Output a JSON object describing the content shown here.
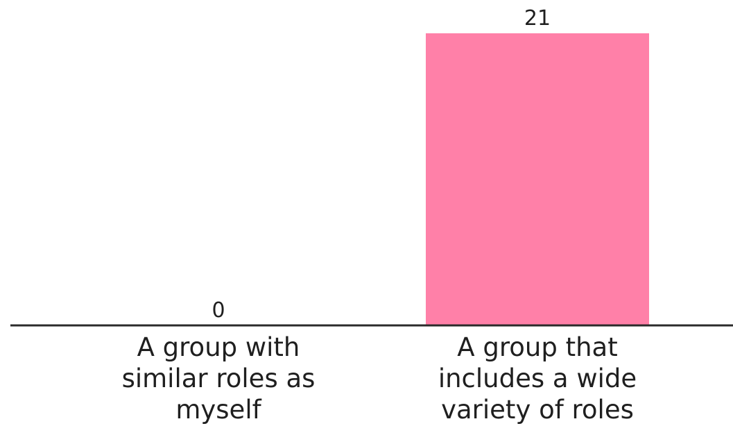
{
  "chart_data": {
    "type": "bar",
    "categories": [
      [
        "A group with",
        "similar roles as",
        "myself"
      ],
      [
        "A group that",
        "includes a wide",
        "variety of roles"
      ]
    ],
    "values": [
      0,
      21
    ],
    "data_labels": [
      "0",
      "21"
    ],
    "title": "",
    "xlabel": "",
    "ylabel": "",
    "ylim": [
      0,
      21
    ],
    "grid": false,
    "legend": "none"
  },
  "colors": {
    "bar": "#ff80a8",
    "axis": "#2b2b2b",
    "text": "#1f1f1f",
    "background": "#ffffff"
  }
}
